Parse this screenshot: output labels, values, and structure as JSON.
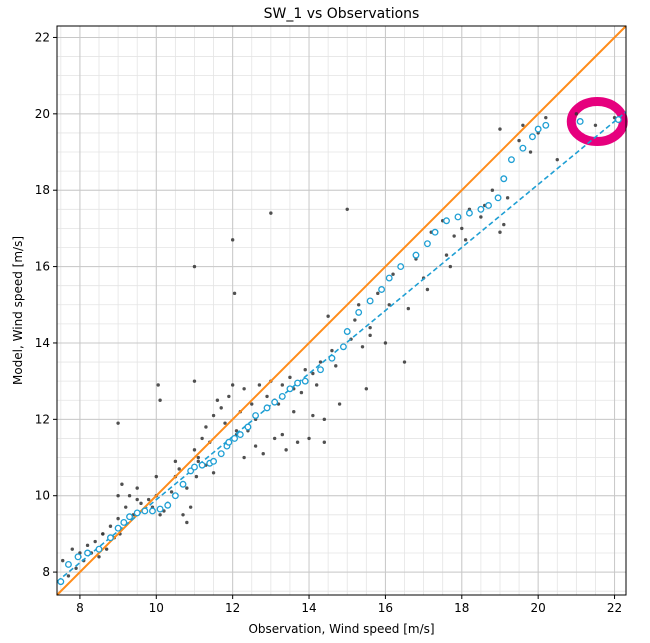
{
  "chart_data": {
    "type": "scatter",
    "title": "SW_1 vs Observations",
    "xlabel": "Observation, Wind speed [m/s]",
    "ylabel": "Model, Wind speed [m/s]",
    "xlim": [
      7.4,
      22.3
    ],
    "ylim": [
      7.4,
      22.3
    ],
    "x_ticks": [
      8,
      10,
      12,
      14,
      16,
      18,
      20,
      22
    ],
    "y_ticks": [
      8,
      10,
      12,
      14,
      16,
      18,
      20,
      22
    ],
    "minor_grid_step": 0.5,
    "grid": true,
    "colors": {
      "points": "#333333",
      "quantiles": "#1f9fd4",
      "one_to_one": "#ff8c1a",
      "fit": "#1f9fd4",
      "annotation": "#e6007e",
      "grid_major": "#c8c8c8",
      "grid_minor": "#e4e4e4"
    },
    "one_to_one_line": {
      "x": [
        7.4,
        22.3
      ],
      "y": [
        7.4,
        22.3
      ]
    },
    "fit_line": {
      "x": [
        7.4,
        22.3
      ],
      "y": [
        7.75,
        20.05
      ]
    },
    "quantiles": {
      "x": [
        7.5,
        7.7,
        7.95,
        8.2,
        8.5,
        8.8,
        9.0,
        9.15,
        9.3,
        9.5,
        9.7,
        9.9,
        10.1,
        10.3,
        10.5,
        10.7,
        10.9,
        11.0,
        11.2,
        11.4,
        11.5,
        11.7,
        11.85,
        11.9,
        12.05,
        12.2,
        12.4,
        12.6,
        12.9,
        13.1,
        13.3,
        13.5,
        13.7,
        13.9,
        14.3,
        14.6,
        14.9,
        15.0,
        15.3,
        15.6,
        15.9,
        16.1,
        16.4,
        16.8,
        17.1,
        17.3,
        17.6,
        17.9,
        18.2,
        18.5,
        18.7,
        18.95,
        19.1,
        19.3,
        19.6,
        19.85,
        20.0,
        20.2,
        21.1,
        22.1
      ],
      "y": [
        7.75,
        8.2,
        8.4,
        8.5,
        8.6,
        8.9,
        9.15,
        9.3,
        9.45,
        9.55,
        9.6,
        9.6,
        9.65,
        9.75,
        10.0,
        10.3,
        10.65,
        10.75,
        10.8,
        10.85,
        10.9,
        11.1,
        11.3,
        11.4,
        11.5,
        11.6,
        11.8,
        12.1,
        12.3,
        12.45,
        12.6,
        12.8,
        12.95,
        13.0,
        13.3,
        13.6,
        13.9,
        14.3,
        14.8,
        15.1,
        15.4,
        15.7,
        16.0,
        16.3,
        16.6,
        16.9,
        17.2,
        17.3,
        17.4,
        17.5,
        17.6,
        17.8,
        18.3,
        18.8,
        19.1,
        19.4,
        19.6,
        19.7,
        19.8,
        19.85
      ]
    },
    "observations": {
      "x": [
        7.55,
        7.7,
        7.8,
        7.9,
        8.0,
        8.1,
        8.2,
        8.3,
        8.4,
        8.5,
        8.6,
        8.7,
        8.8,
        8.9,
        9.0,
        9.0,
        9.05,
        9.1,
        9.2,
        9.3,
        9.4,
        9.5,
        9.6,
        9.7,
        9.8,
        9.9,
        10.0,
        10.05,
        10.1,
        10.2,
        10.3,
        10.4,
        10.5,
        10.6,
        10.7,
        10.8,
        10.9,
        11.0,
        11.0,
        11.0,
        11.05,
        11.1,
        11.2,
        11.3,
        11.4,
        11.5,
        11.6,
        11.7,
        11.8,
        11.9,
        12.0,
        12.0,
        12.05,
        12.1,
        12.2,
        12.3,
        12.4,
        12.5,
        12.6,
        12.7,
        12.8,
        12.9,
        13.0,
        13.0,
        13.1,
        13.2,
        13.3,
        13.4,
        13.5,
        13.6,
        13.7,
        13.8,
        13.9,
        14.0,
        14.1,
        14.2,
        14.3,
        14.4,
        14.5,
        14.6,
        14.7,
        14.8,
        15.0,
        15.0,
        15.2,
        15.3,
        15.4,
        15.6,
        15.8,
        16.0,
        16.2,
        16.5,
        16.8,
        17.0,
        17.2,
        17.5,
        17.8,
        18.0,
        18.2,
        18.5,
        18.8,
        19.0,
        19.0,
        19.2,
        19.5,
        19.8,
        20.0,
        20.2,
        20.5,
        21.0,
        21.5,
        22.0,
        8.0,
        8.6,
        9.0,
        9.5,
        10.0,
        10.5,
        11.1,
        11.5,
        12.1,
        12.6,
        13.1,
        13.6,
        14.1,
        14.6,
        15.1,
        15.6,
        16.1,
        17.1,
        17.6,
        18.1,
        18.6,
        19.1,
        19.6,
        10.1,
        10.8,
        11.3,
        12.3,
        13.3,
        14.4,
        15.5,
        16.6,
        17.7
      ],
      "y": [
        8.3,
        7.9,
        8.6,
        8.1,
        8.5,
        8.3,
        8.7,
        8.5,
        8.8,
        8.4,
        9.0,
        8.6,
        9.2,
        8.9,
        9.4,
        11.9,
        9.0,
        10.3,
        9.7,
        10.0,
        9.5,
        9.9,
        9.8,
        9.6,
        9.9,
        9.7,
        10.0,
        12.9,
        12.5,
        9.6,
        9.8,
        10.1,
        10.5,
        10.7,
        9.5,
        10.2,
        9.7,
        11.2,
        16.0,
        13.0,
        10.5,
        10.9,
        11.5,
        11.8,
        11.4,
        12.1,
        12.5,
        12.3,
        11.9,
        12.6,
        12.9,
        16.7,
        15.3,
        11.6,
        12.2,
        12.8,
        11.7,
        12.4,
        11.3,
        12.9,
        11.1,
        12.6,
        13.0,
        17.4,
        11.5,
        12.4,
        12.9,
        11.2,
        13.1,
        12.8,
        11.4,
        12.7,
        13.3,
        11.5,
        12.1,
        12.9,
        13.5,
        11.4,
        14.7,
        13.8,
        13.4,
        12.4,
        14.3,
        17.5,
        14.6,
        15.0,
        13.9,
        14.2,
        15.3,
        14.0,
        15.8,
        13.5,
        16.2,
        15.7,
        16.9,
        17.2,
        16.8,
        17.0,
        17.5,
        17.3,
        18.0,
        19.6,
        16.9,
        17.8,
        19.3,
        19.0,
        19.5,
        19.9,
        18.8,
        20.0,
        19.7,
        19.9,
        8.4,
        9.0,
        10.0,
        10.2,
        10.5,
        10.9,
        11.0,
        10.6,
        11.7,
        12.0,
        12.5,
        12.2,
        13.2,
        13.6,
        14.1,
        14.4,
        15.0,
        15.4,
        16.3,
        16.7,
        17.6,
        17.1,
        19.7,
        9.5,
        9.3,
        10.8,
        11.0,
        11.6,
        12.0,
        12.8,
        14.9,
        16.0
      ]
    }
  }
}
